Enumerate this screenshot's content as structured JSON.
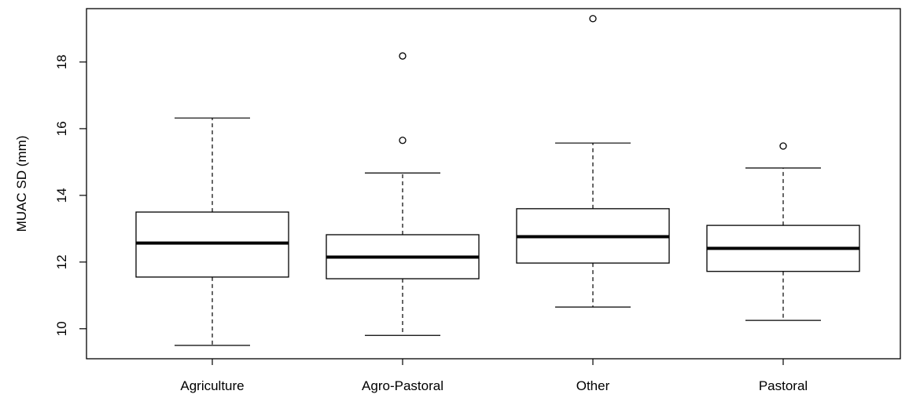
{
  "chart_data": {
    "type": "boxplot",
    "title": "",
    "xlabel": "",
    "ylabel": "MUAC SD (mm)",
    "ylim": [
      9.1,
      19.6
    ],
    "yticks": [
      10,
      12,
      14,
      16,
      18
    ],
    "ytick_labels": [
      "10",
      "12",
      "14",
      "16",
      "18"
    ],
    "grid": false,
    "categories": [
      "Agriculture",
      "Agro-Pastoral",
      "Other",
      "Pastoral"
    ],
    "boxes": [
      {
        "min": 9.5,
        "q1": 11.55,
        "median": 12.57,
        "q3": 13.5,
        "max": 16.32,
        "outliers": []
      },
      {
        "min": 9.8,
        "q1": 11.5,
        "median": 12.15,
        "q3": 12.82,
        "max": 14.67,
        "outliers": [
          15.65,
          18.18
        ]
      },
      {
        "min": 10.65,
        "q1": 11.97,
        "median": 12.76,
        "q3": 13.6,
        "max": 15.57,
        "outliers": [
          19.3
        ]
      },
      {
        "min": 10.25,
        "q1": 11.72,
        "median": 12.41,
        "q3": 13.1,
        "max": 14.82,
        "outliers": [
          15.48
        ]
      }
    ],
    "colors": {
      "box_fill": "#ffffff",
      "stroke": "#000000"
    }
  }
}
